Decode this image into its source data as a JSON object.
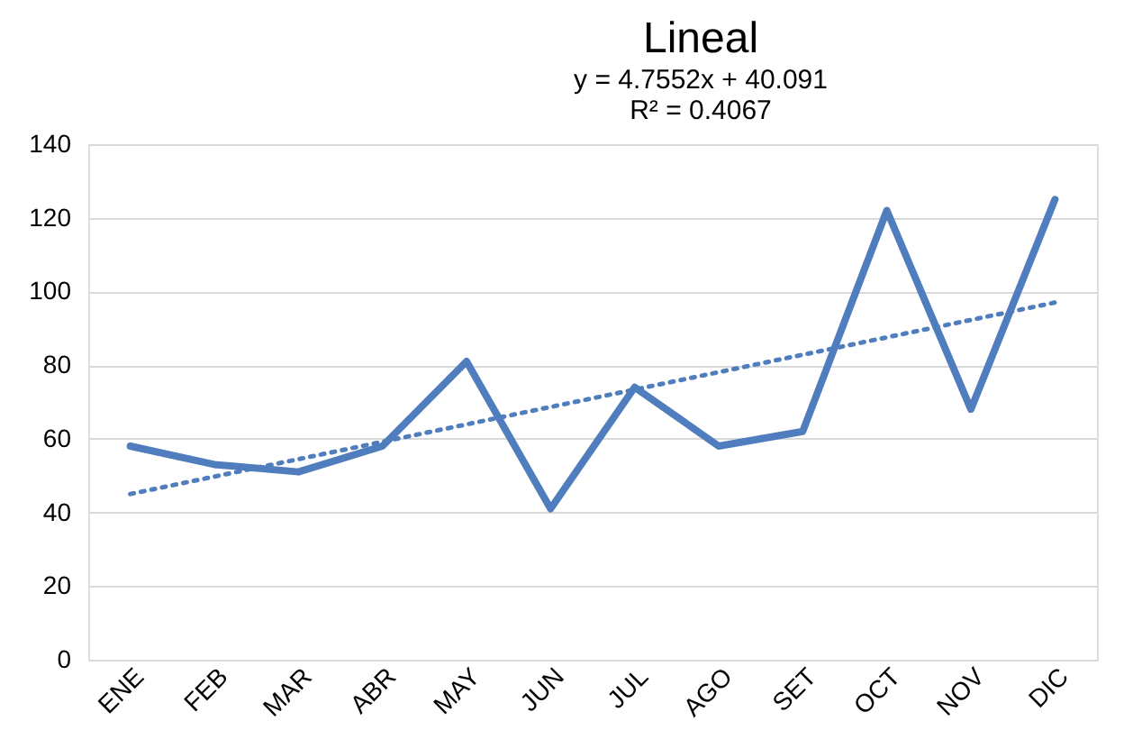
{
  "chart_data": {
    "type": "line",
    "title": "Lineal",
    "annotations": [
      "y = 4.7552x + 40.091",
      "R² = 0.4067"
    ],
    "categories": [
      "ENE",
      "FEB",
      "MAR",
      "ABR",
      "MAY",
      "JUN",
      "JUL",
      "AGO",
      "SET",
      "OCT",
      "NOV",
      "DIC"
    ],
    "series": [
      {
        "color": "#4f7dbd",
        "values": [
          58,
          53,
          51,
          58,
          81,
          41,
          74,
          58,
          62,
          122,
          68,
          125
        ]
      },
      {
        "type": "line",
        "x": [
          "ENE",
          "DIC"
        ],
        "color": "#4f7dbd",
        "line_style": "dotted",
        "values": [
          45,
          97
        ]
      }
    ],
    "ylim": [
      0,
      140
    ],
    "yticks": [
      0,
      20,
      40,
      60,
      80,
      100,
      120,
      140
    ],
    "grid": "y",
    "marker": "none",
    "line_style": "solid"
  }
}
